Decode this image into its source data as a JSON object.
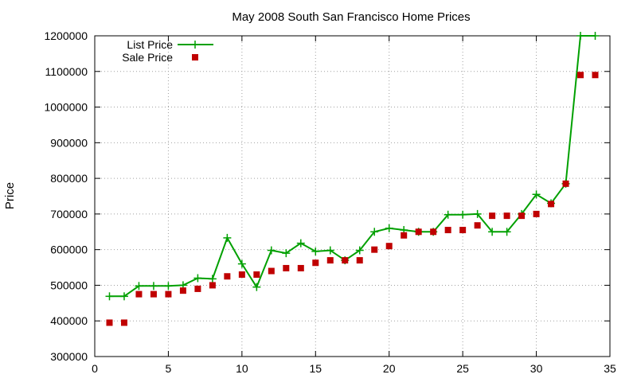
{
  "chart_data": {
    "type": "line",
    "title": "May 2008 South San Francisco Home Prices",
    "xlabel": "",
    "ylabel": "Price",
    "xlim": [
      0,
      35
    ],
    "ylim": [
      300000,
      1200000
    ],
    "xticks": [
      "0",
      "5",
      "10",
      "15",
      "20",
      "25",
      "30",
      "35"
    ],
    "yticks": [
      "300000",
      "400000",
      "500000",
      "600000",
      "700000",
      "800000",
      "900000",
      "1000000",
      "1100000",
      "1200000"
    ],
    "grid": true,
    "legend_position": "top-left",
    "series": [
      {
        "name": "List Price",
        "style": "line+cross",
        "color": "#00a000",
        "x": [
          1,
          2,
          3,
          4,
          5,
          6,
          7,
          8,
          9,
          10,
          11,
          12,
          13,
          14,
          15,
          16,
          17,
          18,
          19,
          20,
          21,
          22,
          23,
          24,
          25,
          26,
          27,
          28,
          29,
          30,
          31,
          32,
          33,
          34
        ],
        "y": [
          469000,
          469000,
          498000,
          498000,
          498000,
          500000,
          520000,
          518000,
          633000,
          560000,
          495000,
          598000,
          590000,
          618000,
          595000,
          598000,
          570000,
          598000,
          650000,
          660000,
          655000,
          650000,
          650000,
          698000,
          698000,
          700000,
          650000,
          650000,
          700000,
          755000,
          730000,
          785000,
          1200000,
          1200000
        ]
      },
      {
        "name": "Sale Price",
        "style": "square",
        "color": "#c00000",
        "x": [
          1,
          2,
          3,
          4,
          5,
          6,
          7,
          8,
          9,
          10,
          11,
          12,
          13,
          14,
          15,
          16,
          17,
          18,
          19,
          20,
          21,
          22,
          23,
          24,
          25,
          26,
          27,
          28,
          29,
          30,
          31,
          32,
          33,
          34
        ],
        "y": [
          395000,
          395000,
          475000,
          475000,
          475000,
          485000,
          490000,
          500000,
          525000,
          530000,
          530000,
          540000,
          548000,
          548000,
          563000,
          570000,
          570000,
          570000,
          600000,
          610000,
          640000,
          650000,
          650000,
          655000,
          655000,
          668000,
          695000,
          695000,
          695000,
          700000,
          728000,
          785000,
          1090000,
          1090000
        ]
      }
    ]
  }
}
